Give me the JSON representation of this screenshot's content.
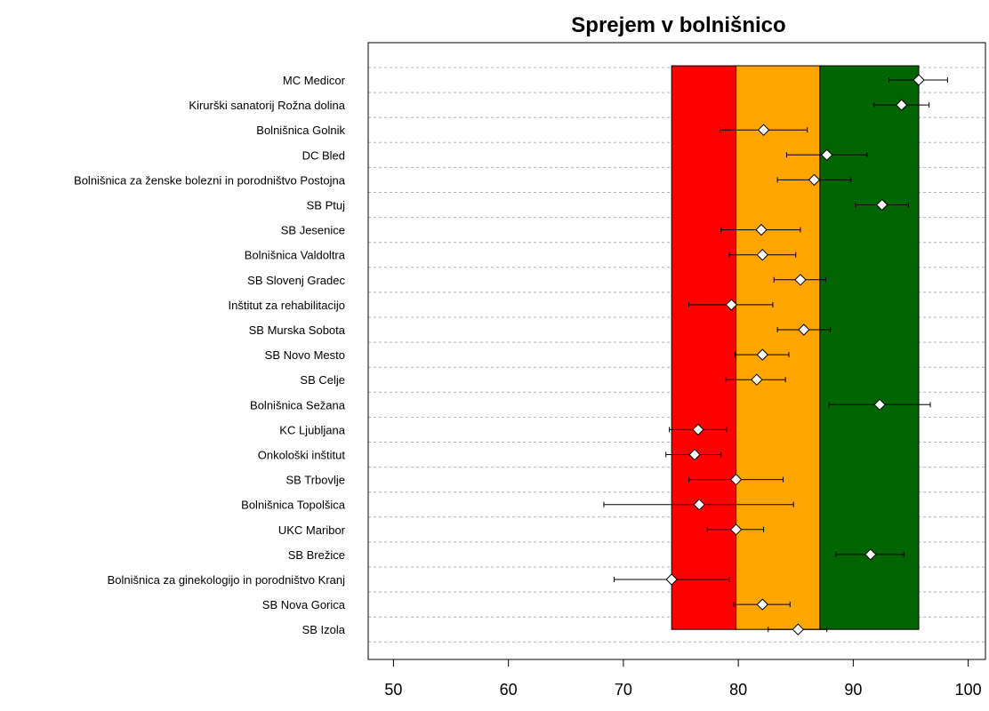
{
  "chart_data": {
    "type": "dot-errorbar",
    "title": "Sprejem v bolnišnico",
    "xlim": [
      47.8,
      101.5
    ],
    "xticks": [
      50,
      60,
      70,
      80,
      90,
      100
    ],
    "bands": [
      {
        "from": 74.2,
        "to": 79.8,
        "color": "#ff0000"
      },
      {
        "from": 79.8,
        "to": 87.1,
        "color": "#ffa500"
      },
      {
        "from": 87.1,
        "to": 95.7,
        "color": "#006400"
      }
    ],
    "grid": "horizontal-dashed",
    "categories": [
      "MC Medicor",
      "Kirurški sanatorij Rožna dolina",
      "Bolnišnica Golnik",
      "DC Bled",
      "Bolnišnica za ženske bolezni in porodništvo Postojna",
      "SB Ptuj",
      "SB Jesenice",
      "Bolnišnica Valdoltra",
      "SB Slovenj Gradec",
      "Inštitut za rehabilitacijo",
      "SB Murska Sobota",
      "SB Novo Mesto",
      "SB Celje",
      "Bolnišnica Sežana",
      "KC Ljubljana",
      "Onkološki inštitut",
      "SB Trbovlje",
      "Bolnišnica Topolšica",
      "UKC Maribor",
      "SB Brežice",
      "Bolnišnica za ginekologijo in porodništvo Kranj",
      "SB Nova Gorica",
      "SB Izola"
    ],
    "values": [
      95.7,
      94.2,
      82.2,
      87.7,
      86.6,
      92.5,
      82.0,
      82.1,
      85.4,
      79.4,
      85.7,
      82.1,
      81.6,
      92.3,
      76.5,
      76.2,
      79.8,
      76.6,
      79.8,
      91.5,
      74.2,
      82.1,
      85.2
    ],
    "lower": [
      93.1,
      91.8,
      78.4,
      84.2,
      83.4,
      90.2,
      78.5,
      79.2,
      83.1,
      75.7,
      83.4,
      79.7,
      78.9,
      87.9,
      74.0,
      73.7,
      75.7,
      68.3,
      77.3,
      88.5,
      69.2,
      79.6,
      82.6
    ],
    "upper": [
      98.2,
      96.6,
      86.0,
      91.2,
      89.8,
      94.8,
      85.4,
      85.0,
      87.6,
      83.0,
      88.0,
      84.4,
      84.1,
      96.7,
      79.0,
      78.5,
      83.9,
      84.8,
      82.2,
      94.4,
      79.2,
      84.5,
      87.7
    ]
  }
}
